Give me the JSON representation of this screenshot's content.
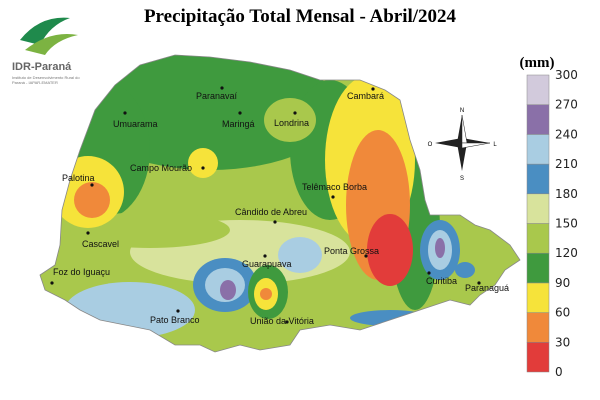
{
  "header": {
    "title": "Precipitação Total Mensal - Abril/2024"
  },
  "logo": {
    "name": "IDR-Paraná",
    "subtitle": "Instituto de Desenvolvimento Rural do Paraná - IAPAR-EMATER"
  },
  "compass": {
    "north": "N",
    "south": "S",
    "west": "O",
    "east": "L"
  },
  "cities": [
    "Cambará",
    "Paranavaí",
    "Umuarama",
    "Maringá",
    "Londrina",
    "Campo Mourão",
    "Palotina",
    "Telêmaco Borba",
    "Cândido de Abreu",
    "Cascavel",
    "Ponta Grossa",
    "Foz do Iguaçu",
    "Guarapuava",
    "Curitiba",
    "Paranaguá",
    "Pato Branco",
    "União da Vitória"
  ],
  "legend": {
    "unit": "(mm)",
    "ticks": [
      0,
      30,
      60,
      90,
      120,
      150,
      180,
      210,
      240,
      270,
      300
    ],
    "colors": [
      "#e23c3a",
      "#f0893a",
      "#f6e33a",
      "#3f9a3e",
      "#a9c84c",
      "#d8e39c",
      "#4a8ec2",
      "#a9cde2",
      "#8a70a8",
      "#d2cadc"
    ]
  }
}
